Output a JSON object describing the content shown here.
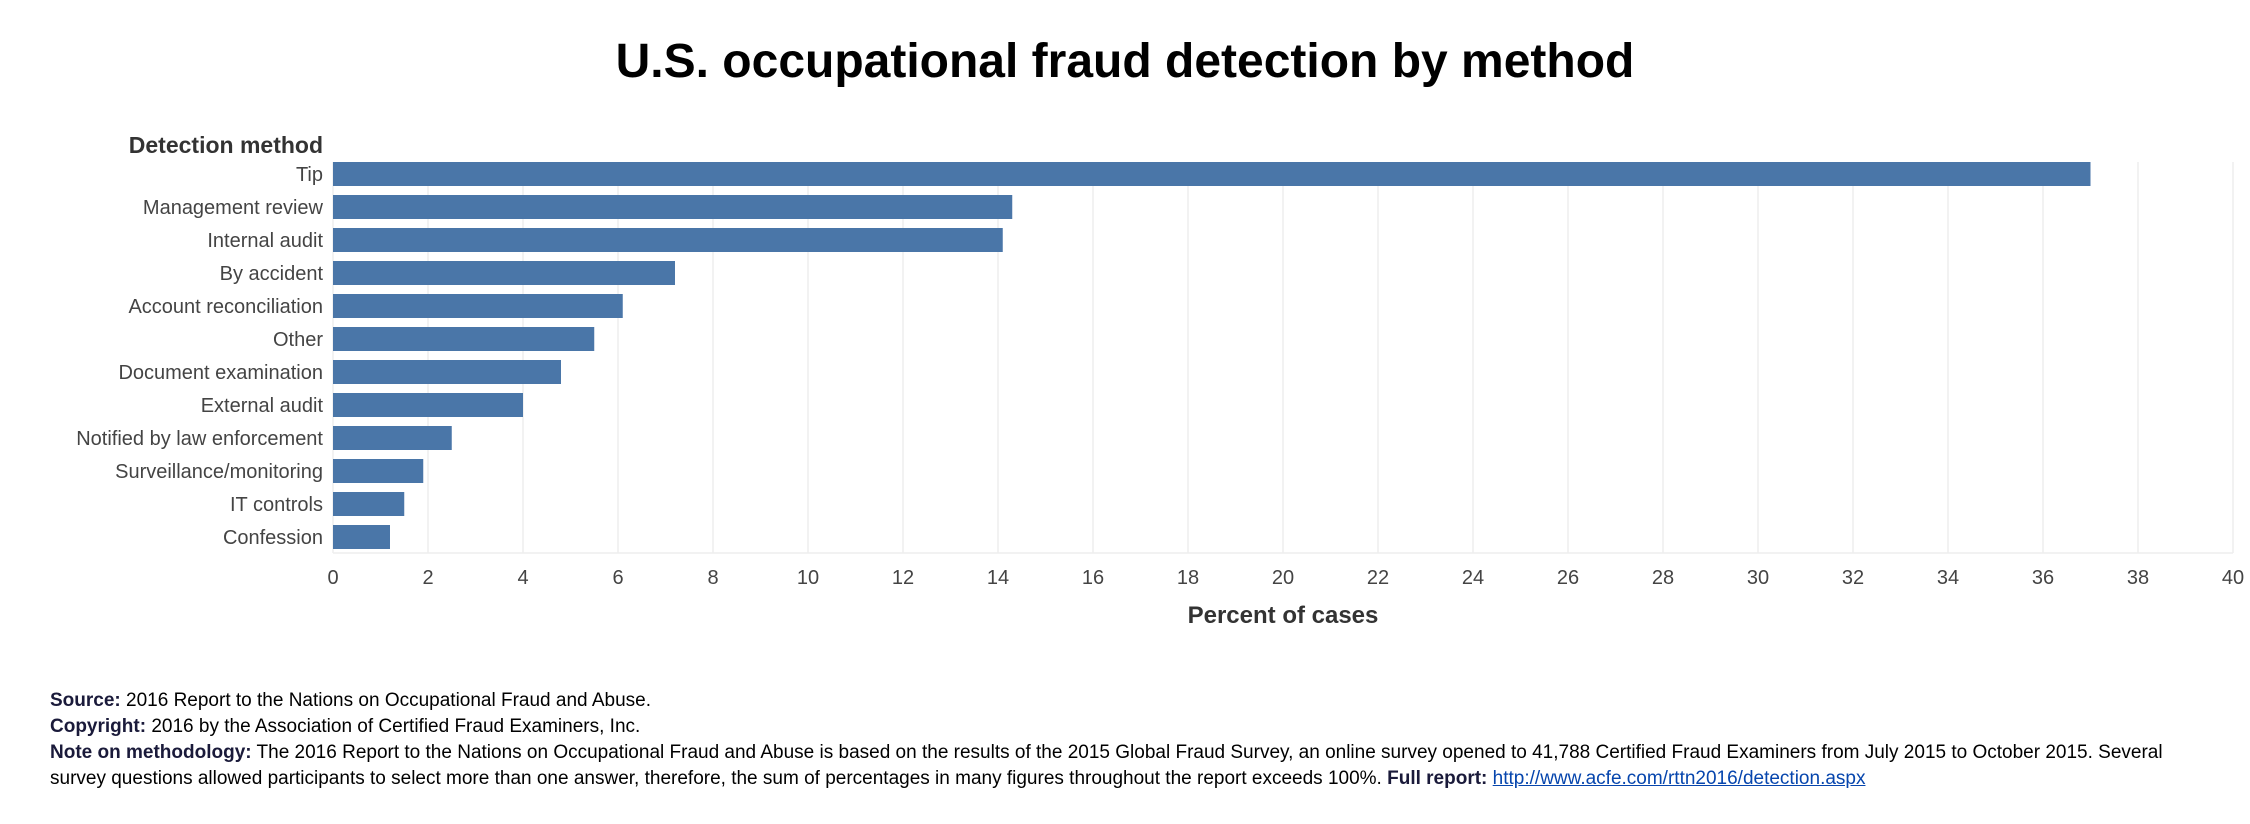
{
  "title": "U.S. occupational fraud detection by method",
  "colors": {
    "bar": "#4a76a8",
    "grid": "#eeeeee",
    "tick": "#444444"
  },
  "chart_data": {
    "type": "bar",
    "orientation": "horizontal",
    "title": "U.S. occupational fraud detection by method",
    "ylabel": "Detection method",
    "xlabel": "Percent of cases",
    "categories": [
      "Tip",
      "Management review",
      "Internal audit",
      "By accident",
      "Account reconciliation",
      "Other",
      "Document examination",
      "External audit",
      "Notified by law enforcement",
      "Surveillance/monitoring",
      "IT controls",
      "Confession"
    ],
    "values": [
      37.0,
      14.3,
      14.1,
      7.2,
      6.1,
      5.5,
      4.8,
      4.0,
      2.5,
      1.9,
      1.5,
      1.2
    ],
    "xlim": [
      0,
      40
    ],
    "xticks": [
      0,
      2,
      4,
      6,
      8,
      10,
      12,
      14,
      16,
      18,
      20,
      22,
      24,
      26,
      28,
      30,
      32,
      34,
      36,
      38,
      40
    ],
    "grid": "vertical",
    "legend": "none"
  },
  "footer": {
    "source_label": "Source:",
    "source_text": "2016 Report to the Nations on Occupational Fraud and Abuse.",
    "copyright_label": "Copyright:",
    "copyright_text": "2016 by the Association of Certified Fraud Examiners, Inc.",
    "note_label": "Note on methodology:",
    "note_text": "The 2016 Report to the Nations on Occupational Fraud and Abuse is based on the results of the 2015 Global Fraud Survey, an online survey opened to 41,788 Certified Fraud Examiners from July 2015 to October 2015. Several survey questions allowed participants to select more than one answer, therefore, the sum of percentages in many figures throughout the report exceeds 100%.",
    "report_label": "Full report:",
    "report_link": "http://www.acfe.com/rttn2016/detection.aspx"
  }
}
